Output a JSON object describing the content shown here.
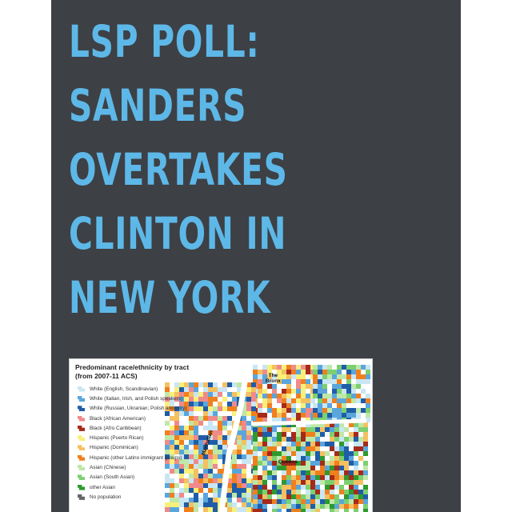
{
  "headline": {
    "lines": [
      "LSP POLL:",
      "SANDERS",
      "OVERTAKES",
      "CLINTON IN",
      "NEW YORK"
    ],
    "color": "#5db8e8"
  },
  "panel": {
    "background": "#3d4045"
  },
  "map": {
    "title_line1": "Predominant race/ethnicity by tract",
    "title_line2": "(from 2007-11 ACS)",
    "legend": [
      {
        "label": "White (English, Scandinavian)",
        "color": "#c9e6f5"
      },
      {
        "label": "White (Italian, Irish, and Polish speakers)",
        "color": "#5aa6dc"
      },
      {
        "label": "White (Russian, Ukranian; Polish ancestry)",
        "color": "#1f5da8"
      },
      {
        "label": "Black (African American)",
        "color": "#f08a8a"
      },
      {
        "label": "Black (Afro Caribbean)",
        "color": "#a52a1a"
      },
      {
        "label": "Hispanic (Puerto Rican)",
        "color": "#f8f07a"
      },
      {
        "label": "Hispanic (Dominican)",
        "color": "#f5c060"
      },
      {
        "label": "Hispanic (other Latino immigrant groups)",
        "color": "#f07f1e"
      },
      {
        "label": "Asian (Chinese)",
        "color": "#bfe8a8"
      },
      {
        "label": "Asian (South Asian)",
        "color": "#7cd070"
      },
      {
        "label": "other Asian",
        "color": "#2e9a2e"
      },
      {
        "label": "No population",
        "color": "#666666"
      }
    ],
    "places": {
      "bronx_line1": "The",
      "bronx_line2": "Bronx",
      "manhattan": "Manhattan",
      "queens": "Queens"
    }
  }
}
